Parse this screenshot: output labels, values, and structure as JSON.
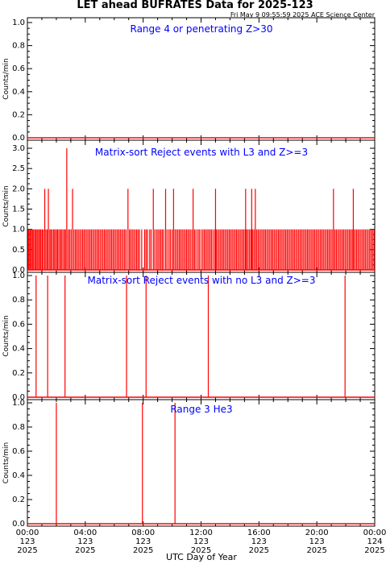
{
  "header": {
    "title": "LET ahead BUFRATES Data for 2025-123",
    "timestamp": "Fri May  9 09:55:59 2025 ACE Science Center"
  },
  "x_axis": {
    "label": "UTC Day of Year",
    "ticks": [
      {
        "t": 0,
        "time": "00:00",
        "doy": "123",
        "year": "2025"
      },
      {
        "t": 4,
        "time": "04:00",
        "doy": "123",
        "year": "2025"
      },
      {
        "t": 8,
        "time": "08:00",
        "doy": "123",
        "year": "2025"
      },
      {
        "t": 12,
        "time": "12:00",
        "doy": "123",
        "year": "2025"
      },
      {
        "t": 16,
        "time": "16:00",
        "doy": "123",
        "year": "2025"
      },
      {
        "t": 20,
        "time": "20:00",
        "doy": "123",
        "year": "2025"
      },
      {
        "t": 24,
        "time": "00:00",
        "doy": "124",
        "year": "2025"
      }
    ],
    "minor_ticks_per_major": 4
  },
  "colors": {
    "data": "#ff0000",
    "panel_title": "#0000ff",
    "axes": "#000000"
  },
  "chart_data": [
    {
      "type": "line",
      "title": "Range 4 or  penetrating Z>30",
      "ylabel": "Counts/min",
      "ylim": [
        0,
        1.0
      ],
      "yticks": [
        "0.0",
        "0.2",
        "0.4",
        "0.6",
        "0.8",
        "1.0"
      ],
      "ytick_values": [
        0,
        0.2,
        0.4,
        0.6,
        0.8,
        1.0
      ],
      "xlim": [
        0,
        24
      ],
      "x_unit": "hours UTC",
      "baseline": 0,
      "spikes": []
    },
    {
      "type": "line",
      "title": "Matrix-sort Reject events with L3 and Z>=3",
      "ylabel": "Counts/min",
      "ylim": [
        0,
        3.0
      ],
      "yticks": [
        "0.0",
        "0.5",
        "1.0",
        "1.5",
        "2.0",
        "2.5",
        "3.0"
      ],
      "ytick_values": [
        0,
        0.5,
        1.0,
        1.5,
        2.0,
        2.5,
        3.0
      ],
      "xlim": [
        0,
        24
      ],
      "x_unit": "hours UTC",
      "baseline": 0,
      "spikes": [
        {
          "x": 0.05,
          "y": 1
        },
        {
          "x": 0.12,
          "y": 1
        },
        {
          "x": 0.2,
          "y": 1
        },
        {
          "x": 0.28,
          "y": 1
        },
        {
          "x": 0.35,
          "y": 1
        },
        {
          "x": 0.43,
          "y": 1
        },
        {
          "x": 0.52,
          "y": 1
        },
        {
          "x": 0.6,
          "y": 1
        },
        {
          "x": 0.68,
          "y": 1
        },
        {
          "x": 0.77,
          "y": 1
        },
        {
          "x": 0.85,
          "y": 1
        },
        {
          "x": 0.93,
          "y": 1
        },
        {
          "x": 1.02,
          "y": 1
        },
        {
          "x": 1.1,
          "y": 1
        },
        {
          "x": 1.2,
          "y": 2
        },
        {
          "x": 1.28,
          "y": 1
        },
        {
          "x": 1.37,
          "y": 1
        },
        {
          "x": 1.45,
          "y": 2
        },
        {
          "x": 1.55,
          "y": 1
        },
        {
          "x": 1.63,
          "y": 1
        },
        {
          "x": 1.72,
          "y": 1
        },
        {
          "x": 1.82,
          "y": 1
        },
        {
          "x": 1.9,
          "y": 1
        },
        {
          "x": 2.0,
          "y": 1
        },
        {
          "x": 2.08,
          "y": 1
        },
        {
          "x": 2.17,
          "y": 1
        },
        {
          "x": 2.27,
          "y": 1
        },
        {
          "x": 2.35,
          "y": 1
        },
        {
          "x": 2.45,
          "y": 1
        },
        {
          "x": 2.55,
          "y": 1
        },
        {
          "x": 2.63,
          "y": 1
        },
        {
          "x": 2.72,
          "y": 3
        },
        {
          "x": 2.82,
          "y": 1
        },
        {
          "x": 2.92,
          "y": 1
        },
        {
          "x": 3.02,
          "y": 1
        },
        {
          "x": 3.12,
          "y": 2
        },
        {
          "x": 3.22,
          "y": 1
        },
        {
          "x": 3.32,
          "y": 1
        },
        {
          "x": 3.42,
          "y": 1
        },
        {
          "x": 3.52,
          "y": 1
        },
        {
          "x": 3.62,
          "y": 1
        },
        {
          "x": 3.72,
          "y": 1
        },
        {
          "x": 3.82,
          "y": 1
        },
        {
          "x": 3.92,
          "y": 1
        },
        {
          "x": 4.02,
          "y": 1
        },
        {
          "x": 4.12,
          "y": 1
        },
        {
          "x": 4.22,
          "y": 1
        },
        {
          "x": 4.32,
          "y": 1
        },
        {
          "x": 4.42,
          "y": 1
        },
        {
          "x": 4.52,
          "y": 1
        },
        {
          "x": 4.62,
          "y": 1
        },
        {
          "x": 4.72,
          "y": 1
        },
        {
          "x": 4.82,
          "y": 1
        },
        {
          "x": 4.92,
          "y": 1
        },
        {
          "x": 5.02,
          "y": 1
        },
        {
          "x": 5.12,
          "y": 1
        },
        {
          "x": 5.22,
          "y": 1
        },
        {
          "x": 5.32,
          "y": 1
        },
        {
          "x": 5.42,
          "y": 1
        },
        {
          "x": 5.52,
          "y": 1
        },
        {
          "x": 5.62,
          "y": 1
        },
        {
          "x": 5.72,
          "y": 1
        },
        {
          "x": 5.82,
          "y": 1
        },
        {
          "x": 5.92,
          "y": 1
        },
        {
          "x": 6.02,
          "y": 1
        },
        {
          "x": 6.12,
          "y": 1
        },
        {
          "x": 6.22,
          "y": 1
        },
        {
          "x": 6.32,
          "y": 1
        },
        {
          "x": 6.42,
          "y": 1
        },
        {
          "x": 6.52,
          "y": 1
        },
        {
          "x": 6.62,
          "y": 1
        },
        {
          "x": 6.72,
          "y": 1
        },
        {
          "x": 6.82,
          "y": 1
        },
        {
          "x": 6.95,
          "y": 2
        },
        {
          "x": 7.05,
          "y": 1
        },
        {
          "x": 7.15,
          "y": 1
        },
        {
          "x": 7.25,
          "y": 1
        },
        {
          "x": 7.35,
          "y": 1
        },
        {
          "x": 7.45,
          "y": 1
        },
        {
          "x": 7.55,
          "y": 1
        },
        {
          "x": 7.65,
          "y": 1
        },
        {
          "x": 7.75,
          "y": 1
        },
        {
          "x": 7.9,
          "y": 1
        },
        {
          "x": 8.1,
          "y": 1
        },
        {
          "x": 8.2,
          "y": 1
        },
        {
          "x": 8.3,
          "y": 1
        },
        {
          "x": 8.45,
          "y": 1
        },
        {
          "x": 8.55,
          "y": 1
        },
        {
          "x": 8.7,
          "y": 2
        },
        {
          "x": 8.8,
          "y": 1
        },
        {
          "x": 8.92,
          "y": 1
        },
        {
          "x": 9.02,
          "y": 1
        },
        {
          "x": 9.12,
          "y": 1
        },
        {
          "x": 9.22,
          "y": 1
        },
        {
          "x": 9.32,
          "y": 1
        },
        {
          "x": 9.42,
          "y": 1
        },
        {
          "x": 9.55,
          "y": 2
        },
        {
          "x": 9.65,
          "y": 1
        },
        {
          "x": 9.78,
          "y": 1
        },
        {
          "x": 9.88,
          "y": 1
        },
        {
          "x": 10.0,
          "y": 1
        },
        {
          "x": 10.1,
          "y": 2
        },
        {
          "x": 10.2,
          "y": 1
        },
        {
          "x": 10.3,
          "y": 1
        },
        {
          "x": 10.4,
          "y": 1
        },
        {
          "x": 10.5,
          "y": 1
        },
        {
          "x": 10.6,
          "y": 1
        },
        {
          "x": 10.7,
          "y": 1
        },
        {
          "x": 10.8,
          "y": 1
        },
        {
          "x": 10.9,
          "y": 1
        },
        {
          "x": 11.0,
          "y": 1
        },
        {
          "x": 11.1,
          "y": 1
        },
        {
          "x": 11.2,
          "y": 1
        },
        {
          "x": 11.3,
          "y": 1
        },
        {
          "x": 11.42,
          "y": 1
        },
        {
          "x": 11.55,
          "y": 1
        },
        {
          "x": 11.65,
          "y": 1
        },
        {
          "x": 11.78,
          "y": 1
        },
        {
          "x": 11.88,
          "y": 1
        },
        {
          "x": 12.0,
          "y": 1
        },
        {
          "x": 12.12,
          "y": 1
        },
        {
          "x": 12.22,
          "y": 1
        },
        {
          "x": 12.32,
          "y": 1
        },
        {
          "x": 12.42,
          "y": 1
        },
        {
          "x": 12.52,
          "y": 1
        },
        {
          "x": 12.62,
          "y": 1
        },
        {
          "x": 12.72,
          "y": 1
        },
        {
          "x": 12.83,
          "y": 1
        },
        {
          "x": 12.95,
          "y": 1
        },
        {
          "x": 13.05,
          "y": 1
        },
        {
          "x": 13.15,
          "y": 1
        },
        {
          "x": 13.25,
          "y": 1
        },
        {
          "x": 13.35,
          "y": 1
        },
        {
          "x": 13.45,
          "y": 1
        },
        {
          "x": 13.55,
          "y": 1
        },
        {
          "x": 13.65,
          "y": 1
        },
        {
          "x": 13.75,
          "y": 1
        },
        {
          "x": 13.85,
          "y": 1
        },
        {
          "x": 13.95,
          "y": 1
        },
        {
          "x": 14.05,
          "y": 1
        },
        {
          "x": 14.15,
          "y": 1
        },
        {
          "x": 14.25,
          "y": 1
        },
        {
          "x": 14.35,
          "y": 1
        },
        {
          "x": 14.45,
          "y": 1
        },
        {
          "x": 14.55,
          "y": 1
        },
        {
          "x": 14.65,
          "y": 1
        },
        {
          "x": 14.75,
          "y": 1
        },
        {
          "x": 14.85,
          "y": 1
        },
        {
          "x": 14.95,
          "y": 1
        },
        {
          "x": 15.05,
          "y": 1
        },
        {
          "x": 15.15,
          "y": 1
        },
        {
          "x": 15.25,
          "y": 1
        },
        {
          "x": 15.35,
          "y": 1
        },
        {
          "x": 15.45,
          "y": 1
        },
        {
          "x": 15.55,
          "y": 1
        },
        {
          "x": 15.65,
          "y": 1
        },
        {
          "x": 15.75,
          "y": 1
        },
        {
          "x": 15.85,
          "y": 1
        },
        {
          "x": 15.95,
          "y": 1
        },
        {
          "x": 16.05,
          "y": 1
        },
        {
          "x": 16.15,
          "y": 1
        },
        {
          "x": 16.25,
          "y": 1
        },
        {
          "x": 16.35,
          "y": 1
        },
        {
          "x": 16.45,
          "y": 1
        },
        {
          "x": 16.55,
          "y": 1
        },
        {
          "x": 16.65,
          "y": 1
        },
        {
          "x": 16.75,
          "y": 1
        },
        {
          "x": 16.85,
          "y": 1
        },
        {
          "x": 16.95,
          "y": 1
        },
        {
          "x": 17.05,
          "y": 1
        },
        {
          "x": 17.15,
          "y": 1
        },
        {
          "x": 17.25,
          "y": 1
        },
        {
          "x": 17.35,
          "y": 1
        },
        {
          "x": 17.45,
          "y": 1
        },
        {
          "x": 17.55,
          "y": 1
        },
        {
          "x": 17.65,
          "y": 1
        },
        {
          "x": 17.75,
          "y": 1
        },
        {
          "x": 17.85,
          "y": 1
        },
        {
          "x": 17.95,
          "y": 1
        },
        {
          "x": 18.05,
          "y": 1
        },
        {
          "x": 18.15,
          "y": 1
        },
        {
          "x": 18.25,
          "y": 1
        },
        {
          "x": 18.35,
          "y": 1
        },
        {
          "x": 18.45,
          "y": 1
        },
        {
          "x": 18.55,
          "y": 1
        },
        {
          "x": 18.65,
          "y": 1
        },
        {
          "x": 18.75,
          "y": 1
        },
        {
          "x": 18.85,
          "y": 1
        },
        {
          "x": 18.95,
          "y": 1
        },
        {
          "x": 19.05,
          "y": 1
        },
        {
          "x": 19.15,
          "y": 1
        },
        {
          "x": 19.25,
          "y": 1
        },
        {
          "x": 19.35,
          "y": 1
        },
        {
          "x": 19.45,
          "y": 1
        },
        {
          "x": 19.55,
          "y": 1
        },
        {
          "x": 19.65,
          "y": 1
        },
        {
          "x": 19.75,
          "y": 1
        },
        {
          "x": 19.85,
          "y": 1
        },
        {
          "x": 19.95,
          "y": 1
        },
        {
          "x": 20.05,
          "y": 1
        },
        {
          "x": 20.15,
          "y": 1
        },
        {
          "x": 20.25,
          "y": 1
        },
        {
          "x": 20.35,
          "y": 1
        },
        {
          "x": 20.45,
          "y": 1
        },
        {
          "x": 20.55,
          "y": 1
        },
        {
          "x": 20.65,
          "y": 1
        },
        {
          "x": 20.75,
          "y": 1
        },
        {
          "x": 20.85,
          "y": 1
        },
        {
          "x": 20.95,
          "y": 1
        },
        {
          "x": 21.05,
          "y": 1
        },
        {
          "x": 21.15,
          "y": 1
        },
        {
          "x": 21.25,
          "y": 1
        },
        {
          "x": 21.35,
          "y": 1
        },
        {
          "x": 21.45,
          "y": 1
        },
        {
          "x": 21.55,
          "y": 1
        },
        {
          "x": 21.65,
          "y": 1
        },
        {
          "x": 21.75,
          "y": 1
        },
        {
          "x": 21.85,
          "y": 1
        },
        {
          "x": 21.95,
          "y": 1
        },
        {
          "x": 22.05,
          "y": 1
        },
        {
          "x": 22.15,
          "y": 1
        },
        {
          "x": 22.25,
          "y": 1
        },
        {
          "x": 22.35,
          "y": 1
        },
        {
          "x": 22.45,
          "y": 1
        },
        {
          "x": 22.55,
          "y": 1
        },
        {
          "x": 22.65,
          "y": 1
        },
        {
          "x": 22.75,
          "y": 1
        },
        {
          "x": 22.85,
          "y": 1
        },
        {
          "x": 22.95,
          "y": 1
        },
        {
          "x": 23.05,
          "y": 1
        },
        {
          "x": 23.15,
          "y": 1
        },
        {
          "x": 23.25,
          "y": 1
        },
        {
          "x": 23.35,
          "y": 1
        },
        {
          "x": 23.45,
          "y": 1
        },
        {
          "x": 23.55,
          "y": 1
        },
        {
          "x": 23.65,
          "y": 1
        },
        {
          "x": 23.75,
          "y": 1
        },
        {
          "x": 23.85,
          "y": 1
        },
        {
          "x": 23.95,
          "y": 1
        },
        {
          "x": 11.45,
          "y": 2
        },
        {
          "x": 13.0,
          "y": 2
        },
        {
          "x": 15.08,
          "y": 2
        },
        {
          "x": 15.5,
          "y": 2
        },
        {
          "x": 15.75,
          "y": 2
        },
        {
          "x": 21.15,
          "y": 2
        },
        {
          "x": 22.52,
          "y": 2
        }
      ]
    },
    {
      "type": "line",
      "title": "Matrix-sort Reject events with no L3 and Z>=3",
      "ylabel": "Counts/min",
      "ylim": [
        0,
        1.0
      ],
      "yticks": [
        "0.0",
        "0.2",
        "0.4",
        "0.6",
        "0.8",
        "1.0"
      ],
      "ytick_values": [
        0,
        0.2,
        0.4,
        0.6,
        0.8,
        1.0
      ],
      "xlim": [
        0,
        24
      ],
      "x_unit": "hours UTC",
      "baseline": 0,
      "spikes": [
        {
          "x": 0.6,
          "y": 1
        },
        {
          "x": 1.4,
          "y": 1
        },
        {
          "x": 2.6,
          "y": 1
        },
        {
          "x": 6.85,
          "y": 1
        },
        {
          "x": 8.2,
          "y": 1
        },
        {
          "x": 12.5,
          "y": 1
        },
        {
          "x": 21.95,
          "y": 1
        }
      ]
    },
    {
      "type": "line",
      "title": "Range 3 He3",
      "ylabel": "Counts/min",
      "ylim": [
        0,
        1.0
      ],
      "yticks": [
        "0.0",
        "0.2",
        "0.4",
        "0.6",
        "0.8",
        "1.0"
      ],
      "ytick_values": [
        0,
        0.2,
        0.4,
        0.6,
        0.8,
        1.0
      ],
      "xlim": [
        0,
        24
      ],
      "x_unit": "hours UTC",
      "baseline": 0,
      "spikes": [
        {
          "x": 2.0,
          "y": 1
        },
        {
          "x": 7.95,
          "y": 1
        },
        {
          "x": 10.2,
          "y": 1
        }
      ]
    }
  ]
}
